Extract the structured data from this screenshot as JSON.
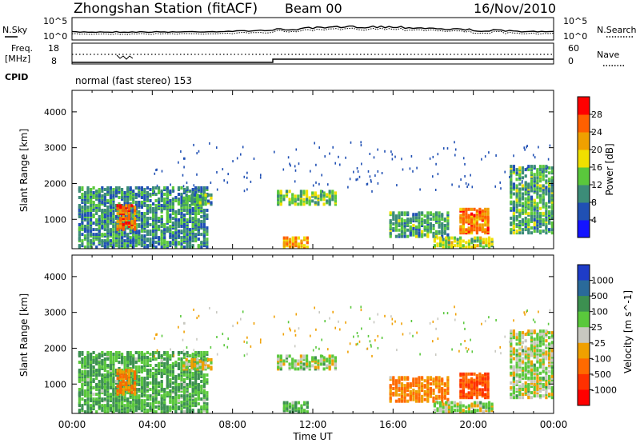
{
  "header": {
    "station": "Zhongshan Station (fitACF)",
    "beam": "Beam 00",
    "date": "16/Nov/2010"
  },
  "noise_panel": {
    "left_label": "N.Sky",
    "right_label": "N.Search",
    "tick_top": "10^5",
    "tick_bottom": "10^0"
  },
  "freq_panel": {
    "left_label_1": "Freq.",
    "left_label_2": "[MHz]",
    "left_ticks": [
      "18",
      "8"
    ],
    "right_label": "Nave",
    "right_ticks": [
      "60",
      "0"
    ],
    "cpid_label": "CPID",
    "mode": "normal (fast stereo) 153"
  },
  "power_panel": {
    "ylabel": "Slant Range [km]",
    "yticks": [
      "1000",
      "2000",
      "3000",
      "4000"
    ],
    "colorbar_title": "Power [dB]",
    "colorbar_ticks": [
      "4",
      "8",
      "12",
      "16",
      "20",
      "24",
      "28"
    ],
    "colors": [
      "#1414ff",
      "#2050b4",
      "#3c8c78",
      "#5ac83c",
      "#f0e000",
      "#f0a000",
      "#ff6000",
      "#ff0000"
    ]
  },
  "velocity_panel": {
    "ylabel": "Slant Range [km]",
    "yticks": [
      "1000",
      "2000",
      "3000",
      "4000"
    ],
    "colorbar_title": "Velocity [m s^-1]",
    "colorbar_ticks": [
      "1000",
      "500",
      "100",
      "25",
      "-25",
      "-100",
      "-500",
      "-1000"
    ],
    "colors": [
      "#1e3cc8",
      "#2a6a9a",
      "#3c9050",
      "#5ac83c",
      "#c8c8c0",
      "#f0a000",
      "#ff6a00",
      "#ff3000",
      "#ff0000"
    ]
  },
  "xaxis": {
    "label": "Time UT",
    "ticks": [
      "00:00",
      "04:00",
      "08:00",
      "12:00",
      "16:00",
      "20:00",
      "00:00"
    ]
  },
  "chart_data": {
    "type": "heatmap",
    "title": "Zhongshan Station (fitACF) Beam 00 16/Nov/2010",
    "xlabel": "Time UT",
    "ylabel": "Slant Range [km]",
    "xlim_hours": [
      0,
      24
    ],
    "ylim_km": [
      180,
      4600
    ],
    "grid": false,
    "panels": [
      "Power [dB]",
      "Velocity [m s^-1]"
    ],
    "scatter_regions": [
      {
        "t": [
          0.3,
          6.8
        ],
        "r": [
          200,
          1900
        ],
        "power_db": 10,
        "velocity": 100
      },
      {
        "t": [
          2.2,
          3.2
        ],
        "r": [
          700,
          1400
        ],
        "power_db": 26,
        "velocity": -100
      },
      {
        "t": [
          5.5,
          7.0
        ],
        "r": [
          1400,
          1700
        ],
        "power_db": 12,
        "velocity": -25
      },
      {
        "t": [
          10.2,
          13.2
        ],
        "r": [
          1400,
          1800
        ],
        "power_db": 14,
        "velocity": 25
      },
      {
        "t": [
          10.5,
          11.8
        ],
        "r": [
          200,
          500
        ],
        "power_db": 22,
        "velocity": 100
      },
      {
        "t": [
          15.8,
          18.8
        ],
        "r": [
          500,
          1200
        ],
        "power_db": 12,
        "velocity": -100
      },
      {
        "t": [
          19.3,
          20.8
        ],
        "r": [
          600,
          1300
        ],
        "power_db": 24,
        "velocity": -500
      },
      {
        "t": [
          18.0,
          21.0
        ],
        "r": [
          200,
          500
        ],
        "power_db": 16,
        "velocity": 25
      },
      {
        "t": [
          21.8,
          24.0
        ],
        "r": [
          600,
          2500
        ],
        "power_db": 12,
        "velocity": 25
      }
    ]
  }
}
